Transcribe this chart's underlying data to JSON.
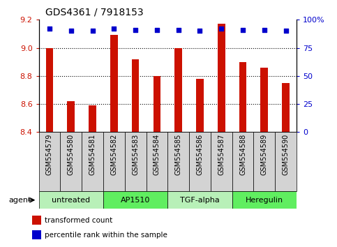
{
  "title": "GDS4361 / 7918153",
  "samples": [
    "GSM554579",
    "GSM554580",
    "GSM554581",
    "GSM554582",
    "GSM554583",
    "GSM554584",
    "GSM554585",
    "GSM554586",
    "GSM554587",
    "GSM554588",
    "GSM554589",
    "GSM554590"
  ],
  "red_values": [
    9.0,
    8.62,
    8.59,
    9.09,
    8.92,
    8.8,
    9.0,
    8.78,
    9.17,
    8.9,
    8.86,
    8.75
  ],
  "blue_values": [
    92,
    90,
    90,
    92,
    91,
    91,
    91,
    90,
    92,
    91,
    91,
    90
  ],
  "ylim_left": [
    8.4,
    9.2
  ],
  "ylim_right": [
    0,
    100
  ],
  "yticks_left": [
    8.4,
    8.6,
    8.8,
    9.0,
    9.2
  ],
  "yticks_right": [
    0,
    25,
    50,
    75,
    100
  ],
  "ytick_labels_right": [
    "0",
    "25",
    "50",
    "75",
    "100%"
  ],
  "groups": [
    {
      "label": "untreated",
      "start": 0,
      "end": 3,
      "color": "#b8f0b8"
    },
    {
      "label": "AP1510",
      "start": 3,
      "end": 6,
      "color": "#60ee60"
    },
    {
      "label": "TGF-alpha",
      "start": 6,
      "end": 9,
      "color": "#b8f0b8"
    },
    {
      "label": "Heregulin",
      "start": 9,
      "end": 12,
      "color": "#60ee60"
    }
  ],
  "bar_color": "#cc1100",
  "dot_color": "#0000cc",
  "background_color": "#ffffff",
  "bar_bottom": 8.4,
  "bar_width": 0.35,
  "legend_red_label": "transformed count",
  "legend_blue_label": "percentile rank within the sample",
  "agent_label": "agent",
  "grid_yticks": [
    9.0,
    8.8,
    8.6
  ],
  "tick_label_bg": "#d3d3d3"
}
